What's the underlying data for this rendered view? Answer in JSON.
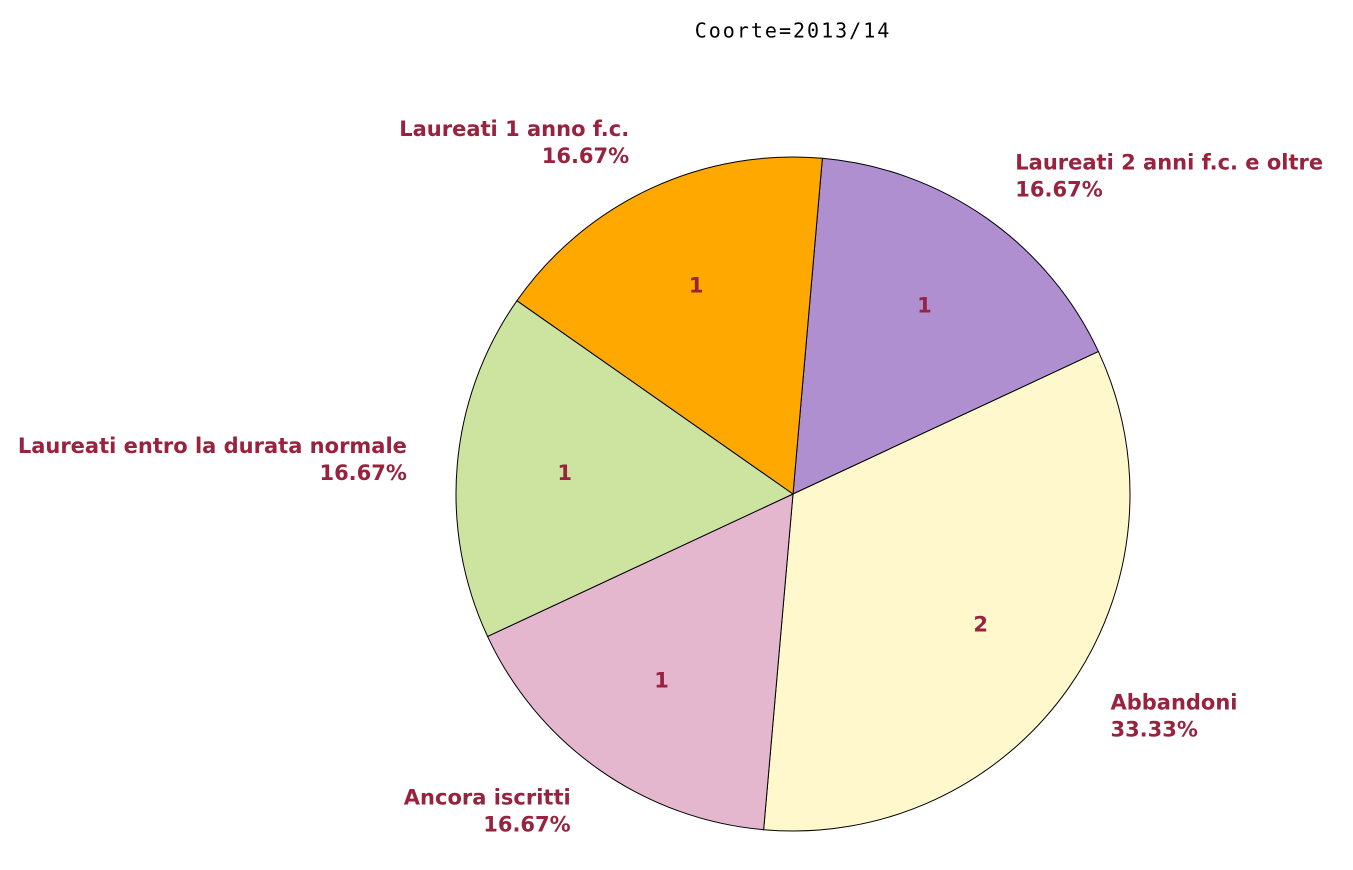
{
  "chart_data": {
    "type": "pie",
    "title": "Coorte=2013/14",
    "categories": [
      "Laureati 2 anni f.c. e oltre",
      "Abbandoni",
      "Ancora iscritti",
      "Laureati entro la durata normale",
      "Laureati 1 anno f.c."
    ],
    "values": [
      1,
      2,
      1,
      1,
      1
    ],
    "percent_labels": [
      "16.67%",
      "33.33%",
      "16.67%",
      "16.67%",
      "16.67%"
    ],
    "colors": [
      "#b08fd0",
      "#fef8cc",
      "#e5b7cf",
      "#cce4a0",
      "#fea800"
    ]
  }
}
